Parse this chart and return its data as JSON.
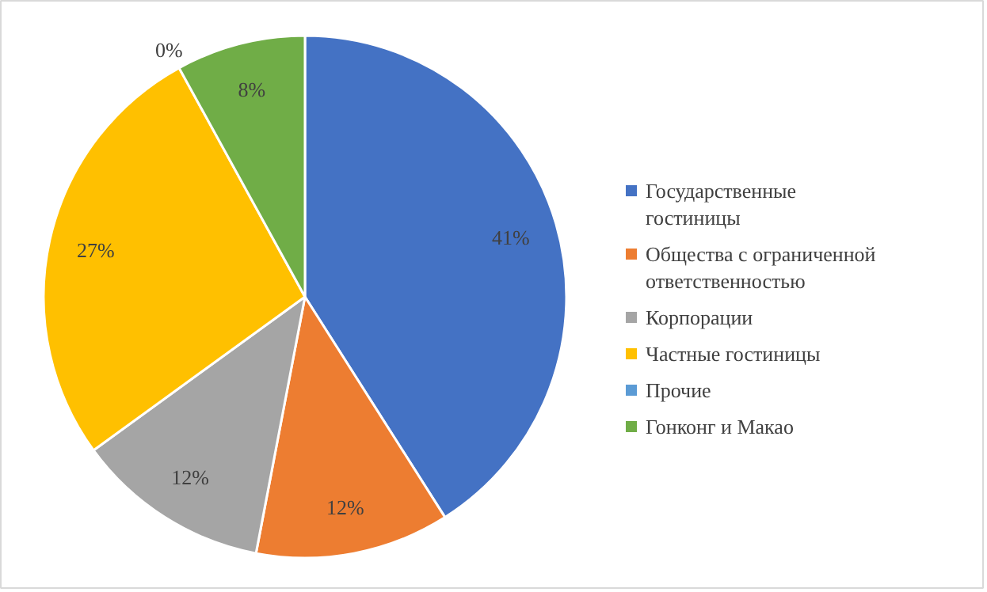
{
  "chart_data": {
    "type": "pie",
    "categories": [
      "Государственные гостиницы",
      "Общества с ограниченной ответственностью",
      "Корпорации",
      "Частные гостиницы",
      "Прочие",
      "Гонконг и Макао"
    ],
    "values": [
      41,
      12,
      12,
      27,
      0,
      8
    ],
    "colors": [
      "#4472c4",
      "#ed7d31",
      "#a5a5a5",
      "#ffc000",
      "#5b9bd5",
      "#70ad47"
    ],
    "value_labels": [
      "41%",
      "12%",
      "12%",
      "27%",
      "0%",
      "8%"
    ],
    "legend": "right"
  }
}
